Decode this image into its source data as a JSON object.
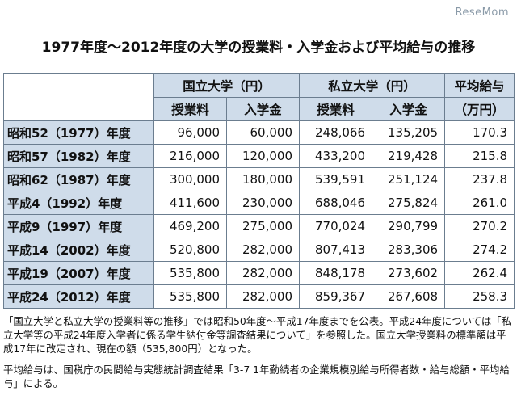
{
  "watermark": "ReseMom",
  "title": "1977年度〜2012年度の大学の授業料・入学金および平均給与の推移",
  "header": {
    "national": "国立大学（円）",
    "private": "私立大学（円）",
    "salary_line1": "平均給与",
    "salary_line2": "（万円）",
    "tuition": "授業料",
    "admission": "入学金"
  },
  "chart_data": {
    "type": "table",
    "title": "1977年度〜2012年度の大学の授業料・入学金および平均給与の推移",
    "columns": [
      "国立大学 授業料",
      "国立大学 入学金",
      "私立大学 授業料",
      "私立大学 入学金",
      "平均給与（万円）"
    ],
    "rows": [
      {
        "label": "昭和52（1977）年度",
        "values": [
          "96,000",
          "60,000",
          "248,066",
          "135,205",
          "170.3"
        ]
      },
      {
        "label": "昭和57（1982）年度",
        "values": [
          "216,000",
          "120,000",
          "433,200",
          "219,428",
          "215.8"
        ]
      },
      {
        "label": "昭和62（1987）年度",
        "values": [
          "300,000",
          "180,000",
          "539,591",
          "251,124",
          "237.8"
        ]
      },
      {
        "label": "平成4（1992）年度",
        "values": [
          "411,600",
          "230,000",
          "688,046",
          "275,824",
          "261.0"
        ]
      },
      {
        "label": "平成9（1997）年度",
        "values": [
          "469,200",
          "275,000",
          "770,024",
          "290,799",
          "270.2"
        ]
      },
      {
        "label": "平成14（2002）年度",
        "values": [
          "520,800",
          "282,000",
          "807,413",
          "283,306",
          "274.2"
        ]
      },
      {
        "label": "平成19（2007）年度",
        "values": [
          "535,800",
          "282,000",
          "848,178",
          "273,602",
          "262.4"
        ]
      },
      {
        "label": "平成24（2012）年度",
        "values": [
          "535,800",
          "282,000",
          "859,367",
          "267,608",
          "258.3"
        ]
      }
    ]
  },
  "notes": {
    "note1": "「国立大学と私立大学の授業料等の推移」では昭和50年度〜平成17年度までを公表。平成24年度については「私立大学等の平成24年度入学者に係る学生納付金等調査結果について」を参照した。国立大学授業料の標準額は平成17年に改定され、現在の額（535,800円）となった。",
    "note2": "平均給与は、国税庁の民間給与実態統計調査結果「3-7 1年勤続者の企業規模別給与所得者数・給与総額・平均給与」による。"
  }
}
